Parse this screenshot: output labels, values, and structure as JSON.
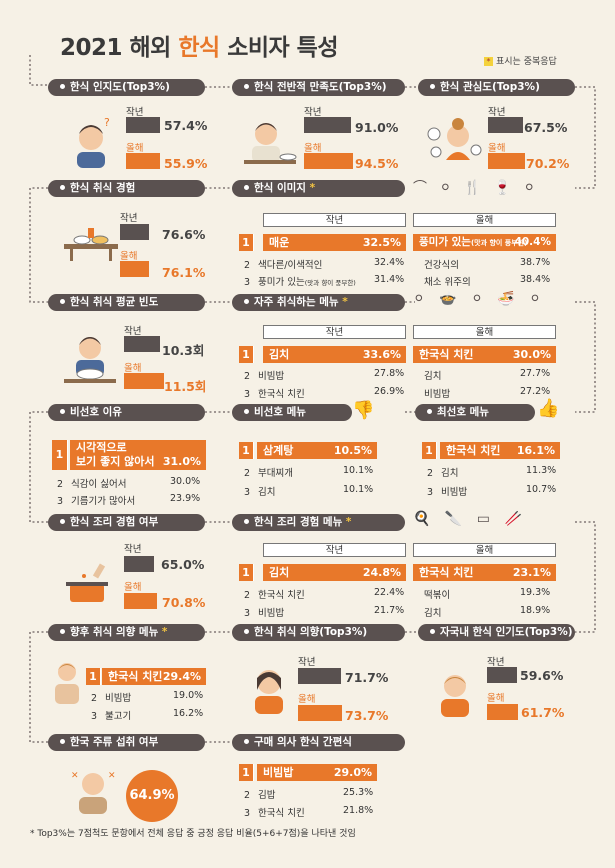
{
  "title_pre": "2021 해외 ",
  "title_hl": "한식",
  "title_post": " 소비자 특성",
  "legend": "표시는 중복응답",
  "labels": {
    "prev": "작년",
    "curr": "올해"
  },
  "awareness": {
    "title": "한식 인지도(Top3%)",
    "prev": "57.4%",
    "curr": "55.9%",
    "prev_pct": 57.4,
    "curr_pct": 55.9
  },
  "satisfaction": {
    "title": "한식 전반적 만족도(Top3%)",
    "prev": "91.0%",
    "curr": "94.5%",
    "prev_pct": 91.0,
    "curr_pct": 94.5
  },
  "interest": {
    "title": "한식 관심도(Top3%)",
    "prev": "67.5%",
    "curr": "70.2%",
    "prev_pct": 67.5,
    "curr_pct": 70.2
  },
  "experience": {
    "title": "한식 취식 경험",
    "prev": "76.6%",
    "curr": "76.1%",
    "prev_pct": 76.6,
    "curr_pct": 76.1
  },
  "image": {
    "title": "한식 이미지",
    "prev": [
      {
        "rank": "1",
        "label": "매운",
        "value": "32.5%"
      },
      {
        "rank": "2",
        "label": "색다른/이색적인",
        "value": "32.4%"
      },
      {
        "rank": "3",
        "label": "풍미가 있는",
        "note": "(맛과 향이 풍부한)",
        "value": "31.4%"
      }
    ],
    "curr": [
      {
        "rank": "1",
        "label": "풍미가 있는",
        "note": "(맛과 향이 풍부한)",
        "value": "40.4%"
      },
      {
        "label": "건강식의",
        "value": "38.7%"
      },
      {
        "label": "채소 위주의",
        "value": "38.4%"
      }
    ]
  },
  "frequency": {
    "title": "한식 취식 평균 빈도",
    "prev": "10.3회",
    "curr": "11.5회",
    "prev_num": 10.3,
    "curr_num": 11.5
  },
  "frequent_menu": {
    "title": "자주 취식하는 메뉴",
    "prev": [
      {
        "rank": "1",
        "label": "김치",
        "value": "33.6%"
      },
      {
        "rank": "2",
        "label": "비빔밥",
        "value": "27.8%"
      },
      {
        "rank": "3",
        "label": "한국식 치킨",
        "value": "26.9%"
      }
    ],
    "curr": [
      {
        "rank": "1",
        "label": "한국식 치킨",
        "value": "30.0%"
      },
      {
        "label": "김치",
        "value": "27.7%"
      },
      {
        "label": "비빔밥",
        "value": "27.2%"
      }
    ]
  },
  "dislike_reason": {
    "title": "비선호 이유",
    "items": [
      {
        "rank": "1",
        "label1": "시각적으로",
        "label2": "보기 좋지 않아서",
        "value": "31.0%"
      },
      {
        "rank": "2",
        "label": "식감이 싫어서",
        "value": "30.0%"
      },
      {
        "rank": "3",
        "label": "기름기가 많아서",
        "value": "23.9%"
      }
    ]
  },
  "disliked_menu": {
    "title": "비선호 메뉴",
    "items": [
      {
        "rank": "1",
        "label": "삼계탕",
        "value": "10.5%"
      },
      {
        "rank": "2",
        "label": "부대찌개",
        "value": "10.1%"
      },
      {
        "rank": "3",
        "label": "김치",
        "value": "10.1%"
      }
    ]
  },
  "favorite_menu": {
    "title": "최선호 메뉴",
    "items": [
      {
        "rank": "1",
        "label": "한국식 치킨",
        "value": "16.1%"
      },
      {
        "rank": "2",
        "label": "김치",
        "value": "11.3%"
      },
      {
        "rank": "3",
        "label": "비빔밥",
        "value": "10.7%"
      }
    ]
  },
  "cooking_exp": {
    "title": "한식 조리 경험 여부",
    "prev": "65.0%",
    "curr": "70.8%",
    "prev_pct": 65.0,
    "curr_pct": 70.8
  },
  "cooking_menu": {
    "title": "한식 조리 경험 메뉴",
    "prev": [
      {
        "rank": "1",
        "label": "김치",
        "value": "24.8%"
      },
      {
        "rank": "2",
        "label": "한국식 치킨",
        "value": "22.4%"
      },
      {
        "rank": "3",
        "label": "비빔밥",
        "value": "21.7%"
      }
    ],
    "curr": [
      {
        "rank": "1",
        "label": "한국식 치킨",
        "value": "23.1%"
      },
      {
        "label": "떡볶이",
        "value": "19.3%"
      },
      {
        "label": "김치",
        "value": "18.9%"
      }
    ]
  },
  "future_menu": {
    "title": "향후 취식 의향 메뉴",
    "items": [
      {
        "rank": "1",
        "label": "한국식 치킨",
        "value": "29.4%"
      },
      {
        "rank": "2",
        "label": "비빔밥",
        "value": "19.0%"
      },
      {
        "rank": "3",
        "label": "불고기",
        "value": "16.2%"
      }
    ]
  },
  "future_intent": {
    "title": "한식 취식 의향(Top3%)",
    "prev": "71.7%",
    "curr": "73.7%",
    "prev_pct": 71.7,
    "curr_pct": 73.7
  },
  "popularity": {
    "title": "자국내 한식 인기도(Top3%)",
    "prev": "59.6%",
    "curr": "61.7%",
    "prev_pct": 59.6,
    "curr_pct": 61.7
  },
  "liquor": {
    "title": "한국 주류 섭취 여부",
    "value": "64.9%"
  },
  "hmr": {
    "title": "구매 의사 한식 간편식",
    "items": [
      {
        "rank": "1",
        "label": "비빔밥",
        "value": "29.0%"
      },
      {
        "rank": "2",
        "label": "김밥",
        "value": "25.3%"
      },
      {
        "rank": "3",
        "label": "한국식 치킨",
        "value": "21.8%"
      }
    ]
  },
  "footnote": "* Top3%는 7점척도 문항에서 전체 응답 중 긍정 응답 비율(5+6+7점)을 나타낸 것임",
  "star": "*",
  "colors": {
    "accent": "#e8782a",
    "dark": "#5a5150",
    "bg": "#f6f1e6",
    "star": "#f4c542"
  }
}
